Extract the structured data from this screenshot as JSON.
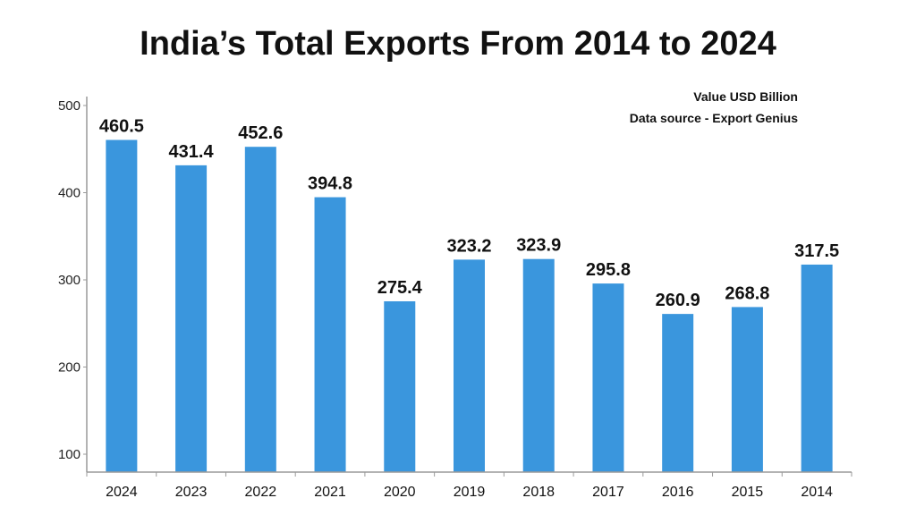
{
  "chart_data": {
    "type": "bar",
    "title": "India’s Total Exports From 2014 to 2024",
    "annotations": [
      "Value USD Billion",
      "Data source - Export Genius"
    ],
    "categories": [
      "2024",
      "2023",
      "2022",
      "2021",
      "2020",
      "2019",
      "2018",
      "2017",
      "2016",
      "2015",
      "2014"
    ],
    "values": [
      460.5,
      431.4,
      452.6,
      394.8,
      275.4,
      323.2,
      323.9,
      295.8,
      260.9,
      268.8,
      317.5
    ],
    "data_labels": [
      "460.5",
      "431.4",
      "452.6",
      "394.8",
      "275.4",
      "323.2",
      "323.9",
      "295.8",
      "260.9",
      "268.8",
      "317.5"
    ],
    "yticks": [
      "100",
      "200",
      "300",
      "400",
      "500"
    ],
    "xlabel": "",
    "ylabel": "",
    "ylim": [
      100,
      500
    ],
    "grid": false,
    "bar_color": "#3a96dd"
  }
}
